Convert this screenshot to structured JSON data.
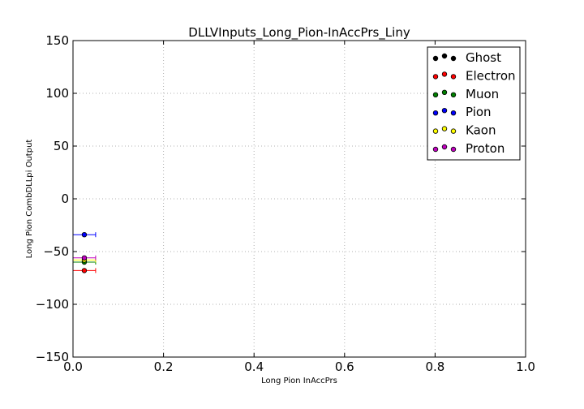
{
  "chart_data": {
    "type": "scatter",
    "title": "DLLVInputs_Long_Pion-InAccPrs_Liny",
    "xlabel": "Long Pion InAccPrs",
    "ylabel": "Long Pion CombDLLpi Output",
    "xlim": [
      0.0,
      1.0
    ],
    "ylim": [
      -150,
      150
    ],
    "xticks": [
      0.0,
      0.2,
      0.4,
      0.6,
      0.8,
      1.0
    ],
    "xtick_labels": [
      "0.0",
      "0.2",
      "0.4",
      "0.6",
      "0.8",
      "1.0"
    ],
    "yticks": [
      150,
      100,
      50,
      0,
      -50,
      -100,
      -150
    ],
    "ytick_labels": [
      "150",
      "100",
      "50",
      "0",
      "−50",
      "−100",
      "−150"
    ],
    "grid": true,
    "legend_position": "top-right",
    "series": [
      {
        "name": "Ghost",
        "color": "#000000",
        "points": []
      },
      {
        "name": "Electron",
        "color": "#ff0000",
        "points": [
          {
            "x": 0.025,
            "y": -68,
            "xerr": 0.025
          }
        ]
      },
      {
        "name": "Muon",
        "color": "#008000",
        "points": [
          {
            "x": 0.025,
            "y": -60,
            "xerr": 0.025
          }
        ]
      },
      {
        "name": "Pion",
        "color": "#0000ff",
        "points": [
          {
            "x": 0.025,
            "y": -34,
            "xerr": 0.025
          }
        ]
      },
      {
        "name": "Kaon",
        "color": "#ffff00",
        "points": [
          {
            "x": 0.025,
            "y": -58,
            "xerr": 0.025
          }
        ]
      },
      {
        "name": "Proton",
        "color": "#bf00bf",
        "points": [
          {
            "x": 0.025,
            "y": -56,
            "xerr": 0.025
          }
        ]
      }
    ]
  }
}
